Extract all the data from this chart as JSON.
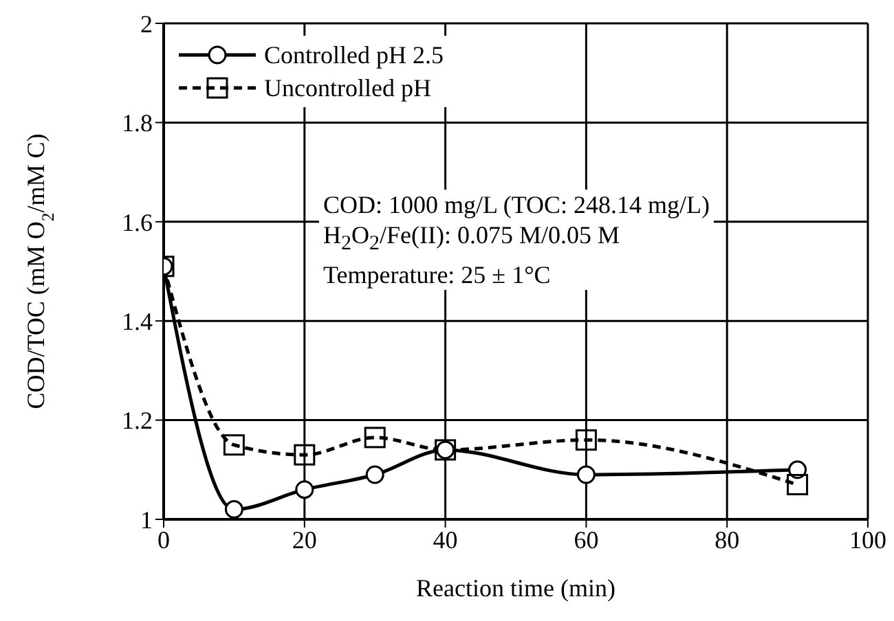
{
  "chart_data": {
    "type": "line",
    "xlabel": "Reaction time (min)",
    "ylabel": "COD/TOC (mM O$_{2}$/mM C)",
    "xlim": [
      0,
      100
    ],
    "xticks": [
      0,
      20,
      40,
      60,
      80,
      100
    ],
    "ylim": [
      1,
      2
    ],
    "yticks": [
      1,
      1.2,
      1.4,
      1.6,
      1.8,
      2
    ],
    "grid": true,
    "legend": "top left",
    "series": [
      {
        "name": "Controlled pH 2.5",
        "color": "#000000",
        "marker": "circle",
        "line_style": "solid",
        "x": [
          0,
          10,
          20,
          30,
          40,
          60,
          90
        ],
        "values": [
          1.51,
          1.02,
          1.06,
          1.09,
          1.14,
          1.09,
          1.1
        ]
      },
      {
        "name": "Uncontrolled pH",
        "color": "#000000",
        "marker": "square",
        "line_style": "dashed",
        "x": [
          0,
          10,
          20,
          30,
          40,
          60,
          90
        ],
        "values": [
          1.51,
          1.15,
          1.13,
          1.165,
          1.14,
          1.16,
          1.07
        ]
      }
    ],
    "annotations": [
      "COD: 1000 mg/L (TOC: 248.14 mg/L)",
      "H$_{2}$O$_{2}$/Fe(II): 0.075 M/0.05 M",
      "Temperature: 25 ± 1°C"
    ]
  }
}
